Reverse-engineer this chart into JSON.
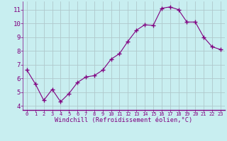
{
  "x_values": [
    0,
    1,
    2,
    3,
    4,
    5,
    6,
    7,
    8,
    9,
    10,
    11,
    12,
    13,
    14,
    15,
    16,
    17,
    18,
    19,
    20,
    21,
    22,
    23
  ],
  "y_values": [
    6.6,
    5.6,
    4.4,
    5.2,
    4.3,
    4.9,
    5.7,
    6.1,
    6.2,
    6.6,
    7.4,
    7.8,
    8.7,
    9.5,
    9.9,
    9.85,
    11.1,
    11.2,
    11.0,
    10.1,
    10.1,
    9.0,
    8.3,
    8.1
  ],
  "line_color": "#800080",
  "marker": "+",
  "bg_color": "#c8eef0",
  "grid_color": "#b0c8cc",
  "xlabel": "Windchill (Refroidissement éolien,°C)",
  "ylabel_ticks": [
    4,
    5,
    6,
    7,
    8,
    9,
    10,
    11
  ],
  "xlim": [
    -0.5,
    23.5
  ],
  "ylim": [
    3.7,
    11.6
  ],
  "xtick_labels": [
    "0",
    "1",
    "2",
    "3",
    "4",
    "5",
    "6",
    "7",
    "8",
    "9",
    "10",
    "11",
    "12",
    "13",
    "14",
    "15",
    "16",
    "17",
    "18",
    "19",
    "20",
    "21",
    "22",
    "23"
  ],
  "tick_color": "#800080",
  "label_color": "#800080",
  "spine_color": "#800080",
  "xtick_fontsize": 5.0,
  "ytick_fontsize": 6.5,
  "xlabel_fontsize": 6.2
}
